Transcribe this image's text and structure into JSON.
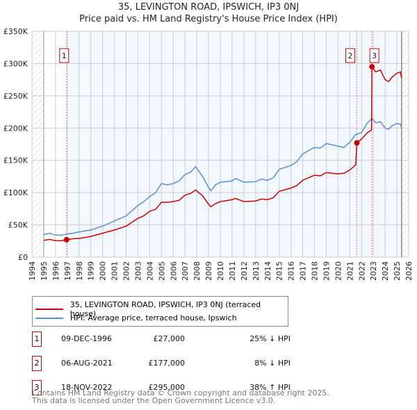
{
  "chart_data": {
    "type": "line",
    "title": "35, LEVINGTON ROAD, IPSWICH, IP3 0NJ",
    "subtitle": "Price paid vs. HM Land Registry's House Price Index (HPI)",
    "xlim": [
      1994,
      2026
    ],
    "ylim": [
      0,
      350000
    ],
    "yticks": [
      0,
      50000,
      100000,
      150000,
      200000,
      250000,
      300000,
      350000
    ],
    "ytick_labels": [
      "£0",
      "£50K",
      "£100K",
      "£150K",
      "£200K",
      "£250K",
      "£300K",
      "£350K"
    ],
    "xtick_labels": [
      "1994",
      "1995",
      "1996",
      "1997",
      "1998",
      "1999",
      "2000",
      "2001",
      "2002",
      "2003",
      "2004",
      "2005",
      "2006",
      "2007",
      "2008",
      "2009",
      "2010",
      "2011",
      "2012",
      "2013",
      "2014",
      "2015",
      "2016",
      "2017",
      "2018",
      "2019",
      "2020",
      "2021",
      "2022",
      "2023",
      "2024",
      "2025",
      "2026"
    ],
    "grid": true,
    "series": [
      {
        "name": "35, LEVINGTON ROAD, IPSWICH, IP3 0NJ (terraced house)",
        "color": "#cc0000",
        "x": [
          1995,
          1995.5,
          1996,
          1996.5,
          1996.94,
          1997.5,
          1998,
          1999,
          2000,
          2001,
          2002,
          2003,
          2003.5,
          2004,
          2004.5,
          2005,
          2005.5,
          2006,
          2006.5,
          2007,
          2007.5,
          2007.9,
          2008.5,
          2009,
          2009.2,
          2009.6,
          2010,
          2011,
          2011.3,
          2012,
          2013,
          2013.5,
          2014,
          2014.5,
          2015,
          2016,
          2016.5,
          2017,
          2018,
          2018.5,
          2019,
          2020,
          2020.5,
          2021,
          2021.5,
          2021.6,
          2022,
          2022.5,
          2022.85,
          2022.88,
          2023.2,
          2023.6,
          2024,
          2024.3,
          2024.6,
          2025,
          2025.3,
          2025.4
        ],
        "values": [
          26000,
          27500,
          25500,
          25500,
          27000,
          28500,
          29000,
          32000,
          37000,
          42000,
          48000,
          60000,
          64000,
          71000,
          74000,
          85000,
          85000,
          86000,
          88000,
          96000,
          99000,
          104000,
          95000,
          82000,
          78000,
          83000,
          86000,
          89000,
          91000,
          86000,
          87000,
          90000,
          89000,
          92000,
          102000,
          107000,
          111000,
          119000,
          127000,
          126000,
          131000,
          129000,
          130000,
          135000,
          143000,
          177000,
          183000,
          193000,
          197000,
          295000,
          287000,
          290000,
          275000,
          272000,
          279000,
          285000,
          287000,
          277000
        ]
      },
      {
        "name": "HPI: Average price, terraced house, Ipswich",
        "color": "#5b8fd4",
        "x": [
          1995,
          1995.5,
          1996,
          1996.5,
          1997,
          1997.5,
          1998,
          1999,
          2000,
          2001,
          2002,
          2003,
          2003.5,
          2004,
          2004.5,
          2005,
          2005.5,
          2006,
          2006.5,
          2007,
          2007.5,
          2007.9,
          2008.5,
          2009,
          2009.2,
          2009.6,
          2010,
          2011,
          2011.3,
          2012,
          2013,
          2013.5,
          2014,
          2014.5,
          2015,
          2016,
          2016.5,
          2017,
          2018,
          2018.5,
          2019,
          2020,
          2020.5,
          2021,
          2021.5,
          2022,
          2022.5,
          2022.9,
          2023.2,
          2023.6,
          2024,
          2024.3,
          2024.6,
          2025,
          2025.3,
          2025.4
        ],
        "values": [
          35000,
          37000,
          34000,
          34000,
          36000,
          37000,
          39000,
          42000,
          48000,
          56000,
          64000,
          80000,
          86000,
          94000,
          100000,
          114000,
          112000,
          114000,
          118000,
          128000,
          132000,
          140000,
          125000,
          108000,
          103000,
          112000,
          116000,
          118000,
          122000,
          116000,
          117000,
          121000,
          119000,
          123000,
          136000,
          142000,
          148000,
          160000,
          170000,
          169000,
          176000,
          172000,
          170000,
          178000,
          190000,
          193000,
          208000,
          215000,
          208000,
          210000,
          200000,
          198000,
          204000,
          207000,
          206000,
          200000
        ]
      }
    ],
    "sales": [
      {
        "label": "1",
        "x": 1996.94,
        "value": 27000,
        "date": "09-DEC-1996",
        "price": "£27,000",
        "hpi": "25% ↓ HPI"
      },
      {
        "label": "2",
        "x": 2021.6,
        "value": 177000,
        "date": "06-AUG-2021",
        "price": "£177,000",
        "hpi": "8% ↓ HPI"
      },
      {
        "label": "3",
        "x": 2022.88,
        "value": 295000,
        "date": "18-NOV-2022",
        "price": "£295,000",
        "hpi": "38% ↑ HPI"
      }
    ],
    "legend_position": "below"
  },
  "footer": {
    "line1": "Contains HM Land Registry data © Crown copyright and database right 2025.",
    "line2": "This data is licensed under the Open Government Licence v3.0."
  }
}
